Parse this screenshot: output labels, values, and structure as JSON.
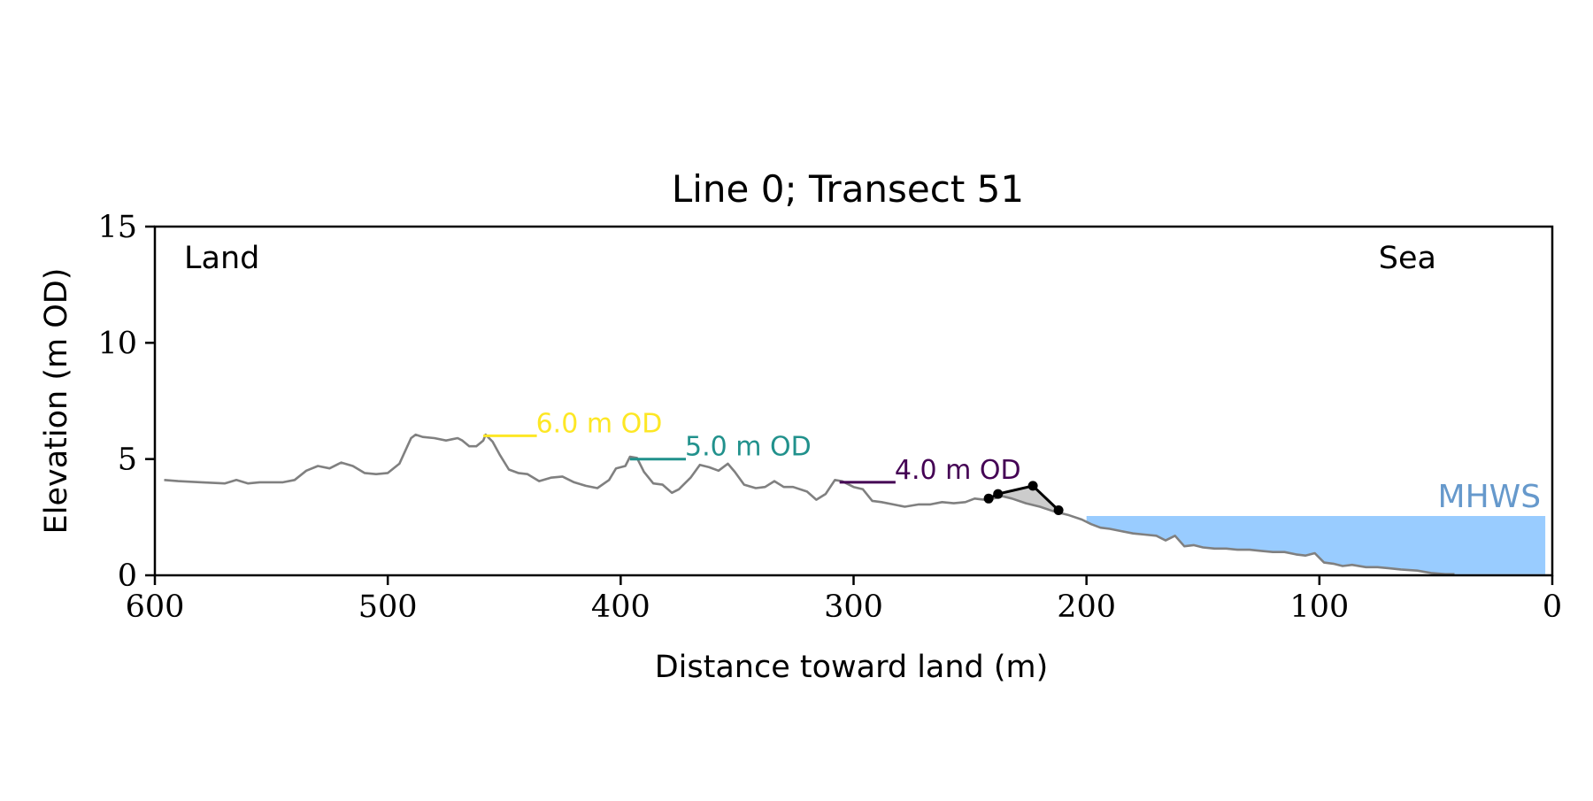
{
  "chart_data": {
    "type": "line",
    "title": "Line 0; Transect 51",
    "xlabel": "Distance toward land (m)",
    "ylabel": "Elevation (m OD)",
    "xlim": [
      600,
      0
    ],
    "ylim": [
      0,
      15
    ],
    "x_ticks": [
      600,
      500,
      400,
      300,
      200,
      100,
      0
    ],
    "y_ticks": [
      0,
      5,
      10,
      15
    ],
    "grid": false,
    "corner_labels": {
      "left": "Land",
      "right": "Sea"
    },
    "profile": {
      "color": "#808080",
      "points": [
        [
          596,
          4.1
        ],
        [
          590,
          4.05
        ],
        [
          580,
          4.0
        ],
        [
          570,
          3.95
        ],
        [
          565,
          4.1
        ],
        [
          560,
          3.95
        ],
        [
          555,
          4.0
        ],
        [
          550,
          4.0
        ],
        [
          545,
          4.0
        ],
        [
          540,
          4.1
        ],
        [
          535,
          4.5
        ],
        [
          530,
          4.7
        ],
        [
          525,
          4.6
        ],
        [
          520,
          4.85
        ],
        [
          515,
          4.7
        ],
        [
          510,
          4.4
        ],
        [
          505,
          4.35
        ],
        [
          500,
          4.4
        ],
        [
          495,
          4.8
        ],
        [
          490,
          5.9
        ],
        [
          488,
          6.05
        ],
        [
          485,
          5.95
        ],
        [
          480,
          5.9
        ],
        [
          475,
          5.8
        ],
        [
          470,
          5.9
        ],
        [
          468,
          5.8
        ],
        [
          465,
          5.55
        ],
        [
          462,
          5.55
        ],
        [
          459,
          5.8
        ],
        [
          458,
          6.05
        ],
        [
          455,
          5.75
        ],
        [
          452,
          5.2
        ],
        [
          448,
          4.55
        ],
        [
          444,
          4.4
        ],
        [
          440,
          4.35
        ],
        [
          435,
          4.05
        ],
        [
          430,
          4.2
        ],
        [
          425,
          4.25
        ],
        [
          420,
          4.0
        ],
        [
          415,
          3.85
        ],
        [
          410,
          3.75
        ],
        [
          405,
          4.1
        ],
        [
          402,
          4.6
        ],
        [
          398,
          4.7
        ],
        [
          396,
          5.1
        ],
        [
          393,
          5.05
        ],
        [
          390,
          4.45
        ],
        [
          386,
          3.95
        ],
        [
          382,
          3.9
        ],
        [
          378,
          3.55
        ],
        [
          375,
          3.7
        ],
        [
          370,
          4.2
        ],
        [
          366,
          4.75
        ],
        [
          362,
          4.65
        ],
        [
          358,
          4.5
        ],
        [
          354,
          4.8
        ],
        [
          351,
          4.45
        ],
        [
          347,
          3.9
        ],
        [
          342,
          3.75
        ],
        [
          338,
          3.8
        ],
        [
          334,
          4.05
        ],
        [
          330,
          3.8
        ],
        [
          326,
          3.8
        ],
        [
          320,
          3.6
        ],
        [
          316,
          3.25
        ],
        [
          312,
          3.5
        ],
        [
          308,
          4.1
        ],
        [
          305,
          4.05
        ],
        [
          300,
          3.8
        ],
        [
          296,
          3.7
        ],
        [
          292,
          3.2
        ],
        [
          288,
          3.15
        ],
        [
          283,
          3.05
        ],
        [
          278,
          2.95
        ],
        [
          272,
          3.05
        ],
        [
          267,
          3.05
        ],
        [
          262,
          3.15
        ],
        [
          257,
          3.1
        ],
        [
          252,
          3.15
        ],
        [
          248,
          3.3
        ],
        [
          244,
          3.25
        ],
        [
          240,
          3.3
        ],
        [
          236,
          3.4
        ],
        [
          232,
          3.3
        ],
        [
          226,
          3.1
        ],
        [
          220,
          2.95
        ],
        [
          214,
          2.75
        ],
        [
          208,
          2.6
        ],
        [
          202,
          2.4
        ],
        [
          198,
          2.2
        ],
        [
          194,
          2.05
        ],
        [
          190,
          2.0
        ],
        [
          185,
          1.9
        ],
        [
          180,
          1.8
        ],
        [
          175,
          1.75
        ],
        [
          170,
          1.7
        ],
        [
          166,
          1.5
        ],
        [
          162,
          1.7
        ],
        [
          158,
          1.25
        ],
        [
          154,
          1.3
        ],
        [
          150,
          1.2
        ],
        [
          145,
          1.15
        ],
        [
          140,
          1.15
        ],
        [
          135,
          1.1
        ],
        [
          130,
          1.1
        ],
        [
          125,
          1.05
        ],
        [
          120,
          1.0
        ],
        [
          115,
          1.0
        ],
        [
          110,
          0.9
        ],
        [
          106,
          0.85
        ],
        [
          102,
          0.95
        ],
        [
          98,
          0.55
        ],
        [
          94,
          0.5
        ],
        [
          90,
          0.4
        ],
        [
          86,
          0.45
        ],
        [
          80,
          0.35
        ],
        [
          75,
          0.35
        ],
        [
          70,
          0.3
        ],
        [
          65,
          0.25
        ],
        [
          58,
          0.2
        ],
        [
          52,
          0.1
        ],
        [
          46,
          0.05
        ],
        [
          42,
          0.05
        ]
      ]
    },
    "contours": [
      {
        "label": "6.0 m OD",
        "value": 6.0,
        "x_start": 459,
        "x_end": 436,
        "color": "#fde725"
      },
      {
        "label": "5.0 m OD",
        "value": 5.0,
        "x_start": 396,
        "x_end": 372,
        "color": "#21918c"
      },
      {
        "label": "4.0 m OD",
        "value": 4.0,
        "x_start": 306,
        "x_end": 282,
        "color": "#440154"
      }
    ],
    "dune_feature": {
      "line_color": "#000000",
      "fill_color": "#cccccc",
      "points": [
        [
          242,
          3.3
        ],
        [
          238,
          3.5
        ],
        [
          223,
          3.85
        ],
        [
          212,
          2.8
        ]
      ]
    },
    "mhws": {
      "label": "MHWS",
      "level": 2.55,
      "x_start": 200,
      "x_end": 3,
      "fill_color": "#99ccff",
      "label_color": "#6699cc"
    }
  }
}
